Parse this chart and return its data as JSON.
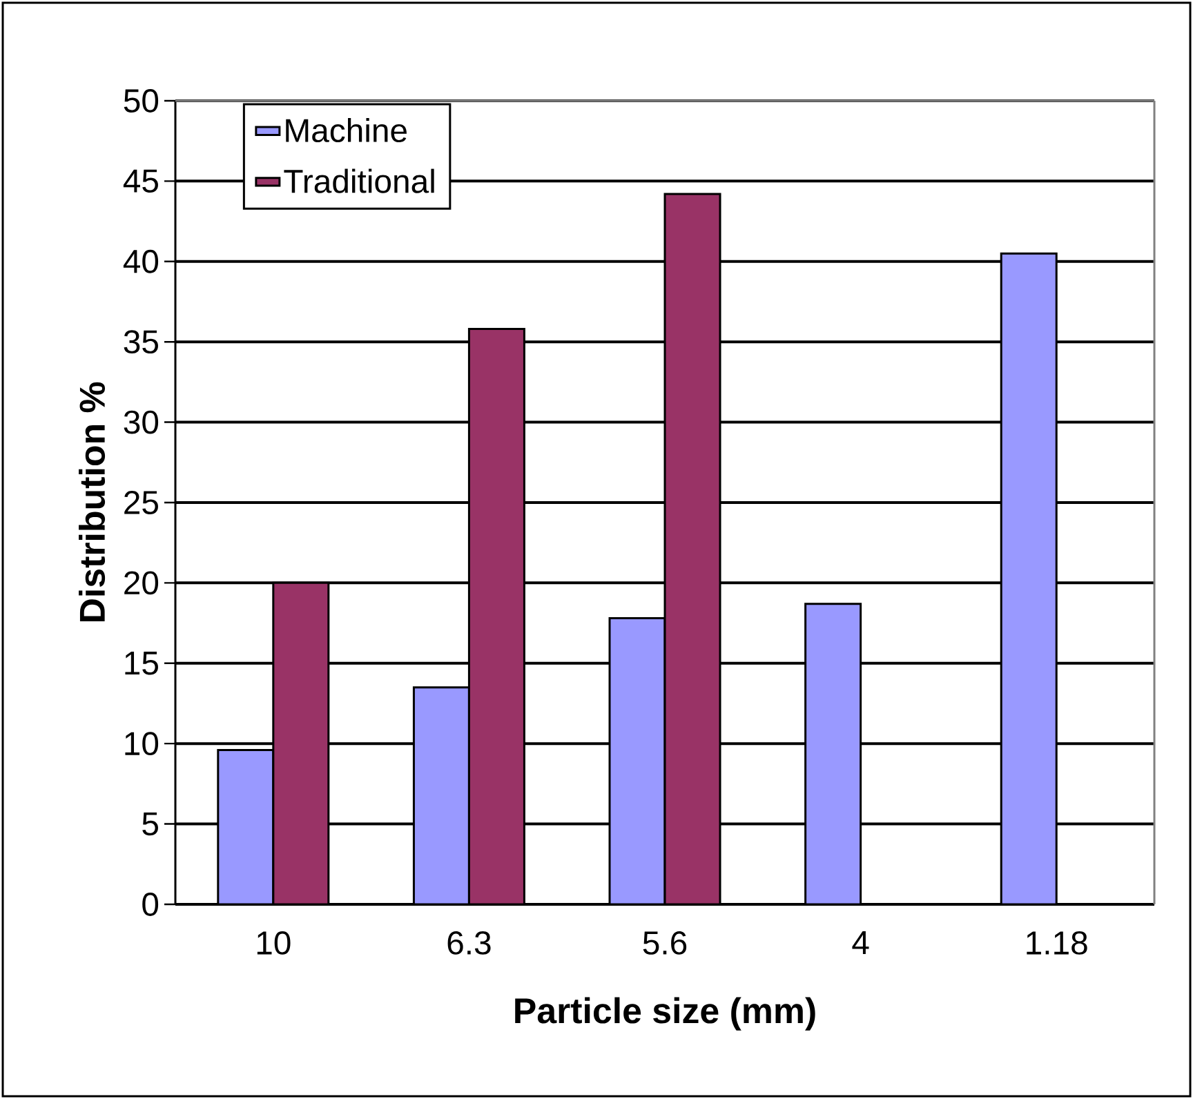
{
  "chart_data": {
    "type": "bar",
    "xlabel": "Particle size (mm)",
    "ylabel": "Distribution %",
    "categories": [
      "10",
      "6.3",
      "5.6",
      "4",
      "1.18"
    ],
    "series": [
      {
        "name": "Machine",
        "color": "#9999ff",
        "values": [
          9.6,
          13.5,
          17.8,
          18.7,
          40.5
        ]
      },
      {
        "name": "Traditional",
        "color": "#993366",
        "values": [
          20,
          35.8,
          44.2,
          null,
          null
        ]
      }
    ],
    "ylim": [
      0,
      50
    ],
    "yticks": [
      0,
      5,
      10,
      15,
      20,
      25,
      30,
      35,
      40,
      45,
      50
    ],
    "grid": "y",
    "legend": "top left"
  }
}
